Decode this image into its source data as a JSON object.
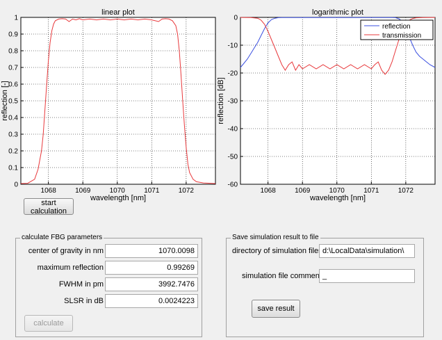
{
  "linear_plot": {
    "title": "linear plot",
    "xlabel": "wavelength [nm]",
    "ylabel": "reflection [-]"
  },
  "log_plot": {
    "title": "logarithmic plot",
    "xlabel": "wavelength [nm]",
    "ylabel": "reflection [dB]",
    "legend": [
      "reflection",
      "transmission"
    ]
  },
  "chart_data": [
    {
      "type": "line",
      "title": "linear plot",
      "xlabel": "wavelength [nm]",
      "ylabel": "reflection [-]",
      "xlim": [
        1067.2,
        1072.85
      ],
      "ylim": [
        0,
        1
      ],
      "grid": true,
      "xticks": [
        1068,
        1069,
        1070,
        1071,
        1072
      ],
      "yticks": [
        0,
        0.1,
        0.2,
        0.3,
        0.4,
        0.5,
        0.6,
        0.7,
        0.8,
        0.9,
        1
      ],
      "xtick_labels": [
        "1068",
        "1069",
        "1070",
        "1071",
        "1072"
      ],
      "ytick_labels": [
        "0",
        "0.1",
        "0.2",
        "0.3",
        "0.4",
        "0.5",
        "0.6",
        "0.7",
        "0.8",
        "0.9",
        "1"
      ],
      "series": [
        {
          "color": "#e8383b",
          "x": [
            1067.2,
            1067.4,
            1067.6,
            1067.7,
            1067.8,
            1067.85,
            1067.9,
            1067.95,
            1068.0,
            1068.05,
            1068.1,
            1068.15,
            1068.2,
            1068.3,
            1068.4,
            1068.5,
            1068.6,
            1068.7,
            1068.8,
            1068.9,
            1069.0,
            1069.2,
            1069.4,
            1069.6,
            1069.8,
            1070.0,
            1070.2,
            1070.4,
            1070.6,
            1070.8,
            1071.0,
            1071.2,
            1071.3,
            1071.4,
            1071.5,
            1071.6,
            1071.7,
            1071.75,
            1071.8,
            1071.85,
            1071.9,
            1071.95,
            1072.0,
            1072.05,
            1072.1,
            1072.2,
            1072.3,
            1072.5,
            1072.85
          ],
          "values": [
            0.004,
            0.006,
            0.03,
            0.09,
            0.2,
            0.3,
            0.45,
            0.6,
            0.74,
            0.85,
            0.92,
            0.96,
            0.98,
            0.99,
            0.992,
            0.99,
            0.975,
            0.99,
            0.985,
            0.992,
            0.985,
            0.99,
            0.985,
            0.99,
            0.985,
            0.99,
            0.985,
            0.99,
            0.985,
            0.99,
            0.985,
            0.975,
            0.99,
            0.992,
            0.99,
            0.98,
            0.95,
            0.9,
            0.8,
            0.66,
            0.5,
            0.35,
            0.22,
            0.12,
            0.07,
            0.03,
            0.015,
            0.008,
            0.004
          ]
        }
      ]
    },
    {
      "type": "line",
      "title": "logarithmic plot",
      "xlabel": "wavelength [nm]",
      "ylabel": "reflection [dB]",
      "xlim": [
        1067.2,
        1072.85
      ],
      "ylim": [
        -60,
        0
      ],
      "grid": true,
      "legend": "top-right",
      "xticks": [
        1068,
        1069,
        1070,
        1071,
        1072
      ],
      "yticks": [
        -60,
        -50,
        -40,
        -30,
        -20,
        -10,
        0
      ],
      "xtick_labels": [
        "1068",
        "1069",
        "1070",
        "1071",
        "1072"
      ],
      "ytick_labels": [
        "-60",
        "-50",
        "-40",
        "-30",
        "-20",
        "-10",
        "0"
      ],
      "series": [
        {
          "name": "reflection",
          "color": "#3a4fe0",
          "x": [
            1067.2,
            1067.3,
            1067.4,
            1067.5,
            1067.6,
            1067.7,
            1067.8,
            1067.9,
            1068.0,
            1068.1,
            1068.2,
            1068.3,
            1068.4,
            1071.6,
            1071.7,
            1071.8,
            1071.9,
            1072.0,
            1072.1,
            1072.2,
            1072.3,
            1072.4,
            1072.5,
            1072.6,
            1072.7,
            1072.85
          ],
          "values": [
            -18,
            -16.5,
            -15,
            -13,
            -11,
            -9,
            -6.5,
            -4,
            -2,
            -0.8,
            -0.3,
            -0.1,
            -0.05,
            -0.05,
            -0.1,
            -0.5,
            -1.5,
            -4,
            -7,
            -10,
            -12.5,
            -14,
            -15,
            -16,
            -17,
            -18
          ]
        },
        {
          "name": "transmission",
          "color": "#e8383b",
          "x": [
            1067.2,
            1067.5,
            1067.7,
            1067.8,
            1067.9,
            1068.0,
            1068.1,
            1068.2,
            1068.3,
            1068.4,
            1068.5,
            1068.6,
            1068.7,
            1068.8,
            1068.9,
            1069.0,
            1069.2,
            1069.4,
            1069.6,
            1069.8,
            1070.0,
            1070.2,
            1070.4,
            1070.6,
            1070.8,
            1071.0,
            1071.1,
            1071.2,
            1071.3,
            1071.4,
            1071.5,
            1071.6,
            1071.7,
            1071.8,
            1071.9,
            1072.0,
            1072.1,
            1072.2,
            1072.3,
            1072.5,
            1072.85
          ],
          "values": [
            -0.02,
            -0.05,
            -0.3,
            -1.0,
            -2.5,
            -5,
            -8,
            -11,
            -14,
            -17,
            -19,
            -17,
            -16,
            -19,
            -17,
            -18.5,
            -17,
            -18.5,
            -17,
            -18.5,
            -17,
            -18.5,
            -17,
            -18.5,
            -17,
            -18.5,
            -17,
            -16,
            -19,
            -20.5,
            -19,
            -16,
            -12,
            -8,
            -5,
            -2.5,
            -1.0,
            -0.4,
            -0.15,
            -0.05,
            -0.02
          ]
        }
      ]
    }
  ],
  "buttons": {
    "start_calculation": "start calculation",
    "calculate": "calculate",
    "save_result": "save result"
  },
  "fbg_panel": {
    "title": "calculate FBG parameters",
    "fields": [
      {
        "label": "center of gravity in nm",
        "value": "1070.0098"
      },
      {
        "label": "maximum reflection",
        "value": "0.99269"
      },
      {
        "label": "FWHM in pm",
        "value": "3992.7476"
      },
      {
        "label": "SLSR in dB",
        "value": "0.0024223"
      }
    ]
  },
  "save_panel": {
    "title": "Save simulation result to file",
    "directory_label": "directory of simulation files",
    "directory_value": "d:\\LocalData\\simulation\\",
    "comments_label": "simulation file comments",
    "comments_value": "_"
  }
}
